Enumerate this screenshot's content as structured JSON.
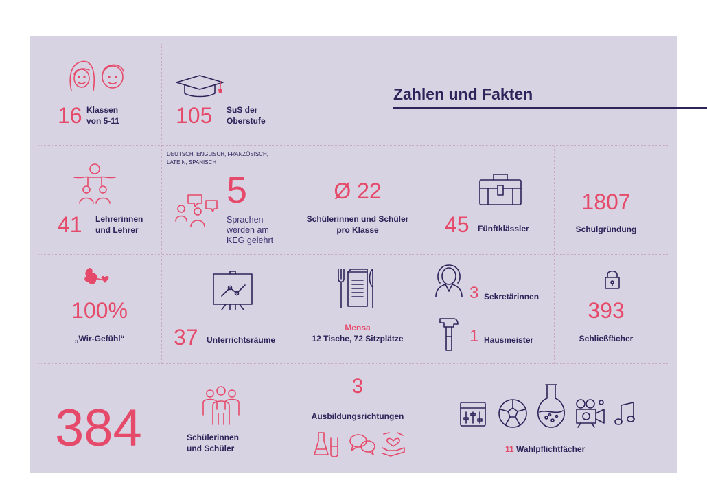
{
  "title": "Zahlen und Fakten",
  "accent_color": "#e64a6b",
  "text_color": "#2d2459",
  "background_color": "#d8d3e2",
  "facts": {
    "klassen": {
      "number": "16",
      "label": [
        "Klassen",
        "von 5-11"
      ],
      "icon": "children-faces-icon"
    },
    "oberstufe": {
      "number": "105",
      "label": [
        "SuS der",
        "Oberstufe"
      ],
      "icon": "graduation-cap-icon"
    },
    "lehrer": {
      "number": "41",
      "label": [
        "Lehrerinnen",
        "und Lehrer"
      ],
      "icon": "teacher-students-icon"
    },
    "sprachen": {
      "languages": [
        "DEUTSCH, ENGLISCH, FRANZÖSISCH,",
        "LATEIN, SPANISCH"
      ],
      "number": "5",
      "label": [
        "Sprachen",
        "werden am",
        "KEG gelehrt"
      ],
      "icon": "people-speech-bubbles-icon"
    },
    "klassengroesse": {
      "number": "Ø 22",
      "label": [
        "Schülerinnen und Schüler",
        "pro Klasse"
      ]
    },
    "fuenftklaessler": {
      "number": "45",
      "label": "Fünftklässler",
      "icon": "briefcase-icon"
    },
    "gruendung": {
      "number": "1807",
      "label": "Schulgründung"
    },
    "wirgefuehl": {
      "number": "100%",
      "label": "„Wir-Gefühl“",
      "icon": "cupid-heart-icon"
    },
    "raeume": {
      "number": "37",
      "label": "Unterrichtsräume",
      "icon": "presentation-board-icon"
    },
    "mensa": {
      "heading": "Mensa",
      "label": "12 Tische, 72 Sitzplätze",
      "icon": "menu-cutlery-icon"
    },
    "sekretaerinnen": {
      "number": "3",
      "label": "Sekretärinnen",
      "icon": "secretary-icon"
    },
    "hausmeister": {
      "number": "1",
      "label": "Hausmeister",
      "icon": "hammer-icon"
    },
    "schliessfaecher": {
      "number": "393",
      "label": "Schließfächer",
      "icon": "lock-icon"
    },
    "schueler": {
      "number": "384",
      "label": [
        "Schülerinnen",
        "und Schüler"
      ],
      "icon": "student-group-icon"
    },
    "ausbildung": {
      "number": "3",
      "label": "Ausbildungsrichtungen",
      "icons": [
        "science-flasks-icon",
        "speech-bubbles-icon",
        "heart-hands-icon"
      ]
    },
    "wahlpflicht": {
      "number": "11",
      "label": "Wahlpflichtfächer",
      "icons": [
        "mixer-icon",
        "football-icon",
        "chemistry-flask-icon",
        "video-camera-icon",
        "music-note-icon"
      ]
    }
  }
}
